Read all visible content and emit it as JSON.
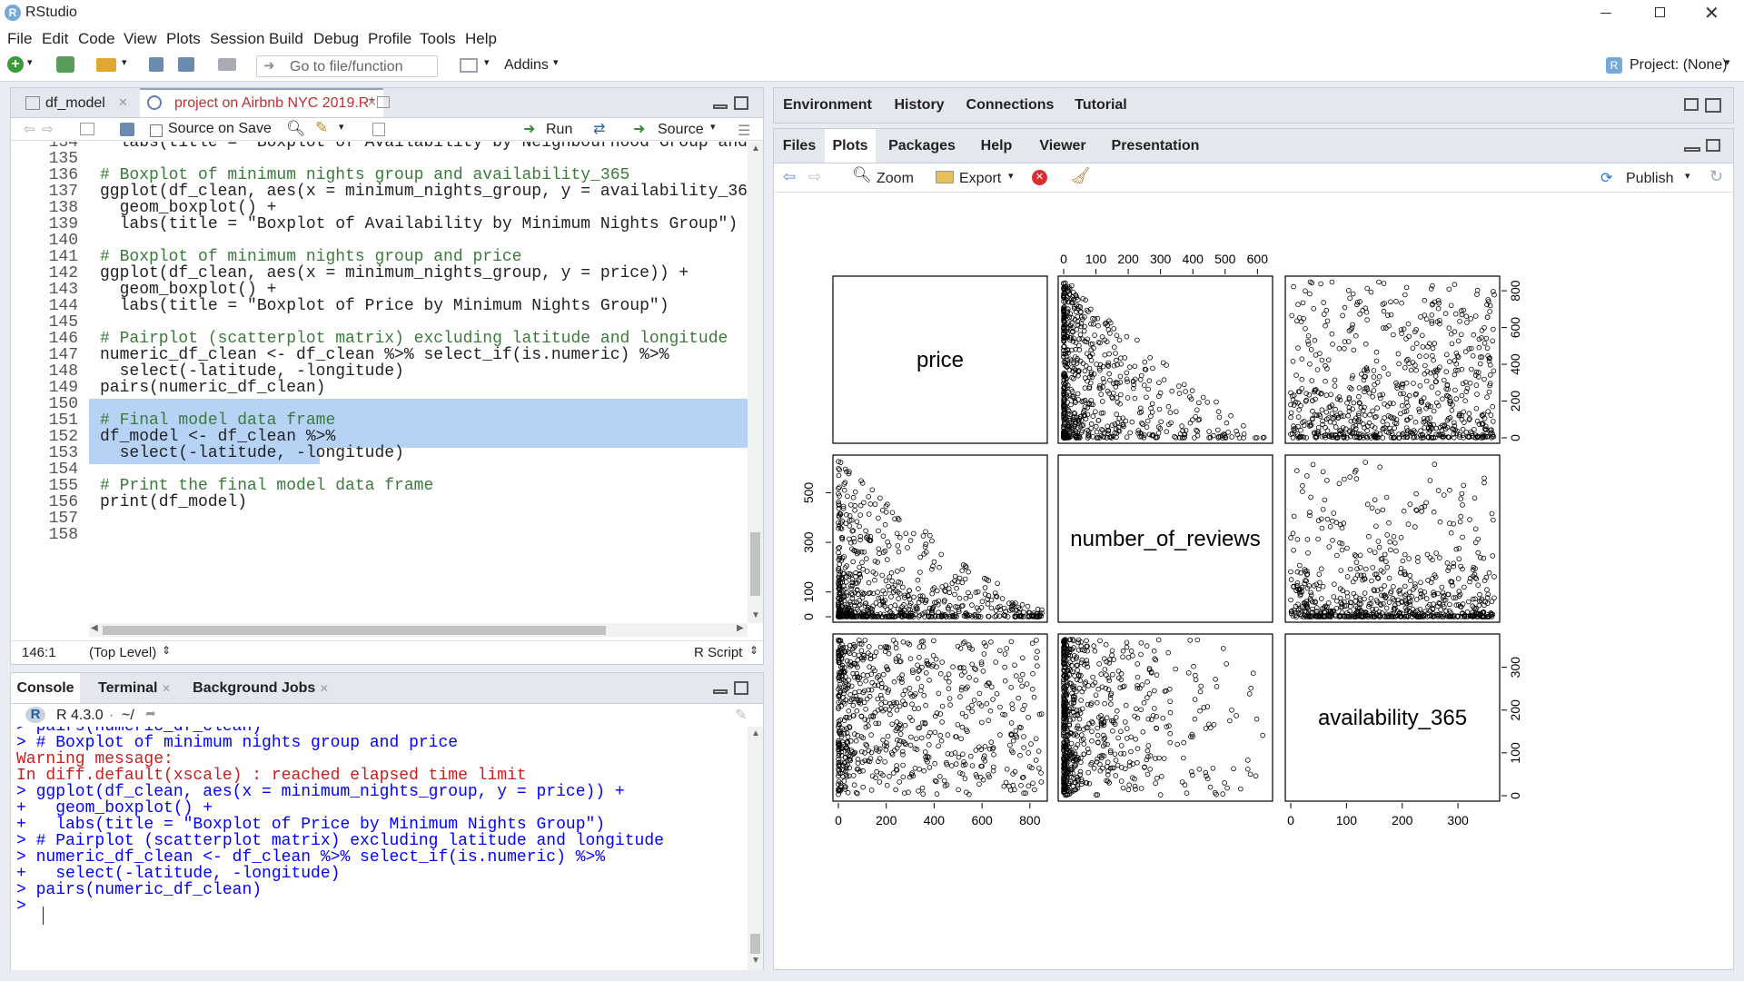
{
  "app": {
    "title": "RStudio"
  },
  "menu": [
    "File",
    "Edit",
    "Code",
    "View",
    "Plots",
    "Session",
    "Build",
    "Debug",
    "Profile",
    "Tools",
    "Help"
  ],
  "toolbar": {
    "goto_placeholder": "Go to file/function",
    "addins": "Addins",
    "project": "Project: (None)"
  },
  "editor": {
    "tabs": [
      {
        "label": "df_model"
      },
      {
        "label": "project on Airbnb NYC 2019.R*"
      }
    ],
    "toolbar": {
      "source_on_save": "Source on Save",
      "run": "Run",
      "source": "Source"
    },
    "lines": [
      {
        "n": "134",
        "t": "  labs(title = \"Boxplot of Availability by Neighbourhood Group and"
      },
      {
        "n": "135",
        "t": ""
      },
      {
        "n": "136",
        "t": "# Boxplot of minimum nights group and availability_365"
      },
      {
        "n": "137",
        "t": "ggplot(df_clean, aes(x = minimum_nights_group, y = availability_36"
      },
      {
        "n": "138",
        "t": "  geom_boxplot() +"
      },
      {
        "n": "139",
        "t": "  labs(title = \"Boxplot of Availability by Minimum Nights Group\")"
      },
      {
        "n": "140",
        "t": ""
      },
      {
        "n": "141",
        "t": "# Boxplot of minimum nights group and price"
      },
      {
        "n": "142",
        "t": "ggplot(df_clean, aes(x = minimum_nights_group, y = price)) +"
      },
      {
        "n": "143",
        "t": "  geom_boxplot() +"
      },
      {
        "n": "144",
        "t": "  labs(title = \"Boxplot of Price by Minimum Nights Group\")"
      },
      {
        "n": "145",
        "t": ""
      },
      {
        "n": "146",
        "t": "# Pairplot (scatterplot matrix) excluding latitude and longitude"
      },
      {
        "n": "147",
        "t": "numeric_df_clean <- df_clean %>% select_if(is.numeric) %>%"
      },
      {
        "n": "148",
        "t": "  select(-latitude, -longitude)"
      },
      {
        "n": "149",
        "t": "pairs(numeric_df_clean)"
      },
      {
        "n": "150",
        "t": ""
      },
      {
        "n": "151",
        "t": "# Final model data frame"
      },
      {
        "n": "152",
        "t": "df_model <- df_clean %>%"
      },
      {
        "n": "153",
        "t": "  select(-latitude, -longitude)"
      },
      {
        "n": "154",
        "t": ""
      },
      {
        "n": "155",
        "t": "# Print the final model data frame"
      },
      {
        "n": "156",
        "t": "print(df_model)"
      },
      {
        "n": "157",
        "t": ""
      },
      {
        "n": "158",
        "t": ""
      }
    ],
    "status": {
      "position": "146:1",
      "scope": "(Top Level)",
      "filetype": "R Script"
    }
  },
  "console": {
    "tabs": [
      {
        "label": "Console"
      },
      {
        "label": "Terminal"
      },
      {
        "label": "Background Jobs"
      }
    ],
    "r_version": "R 4.3.0",
    "path": "~/",
    "lines": [
      {
        "c": "blue",
        "t": "> pairs(numeric_df_clean)"
      },
      {
        "c": "blue",
        "t": "> # Boxplot of minimum nights group and price"
      },
      {
        "c": "red",
        "t": "Warning message:"
      },
      {
        "c": "red",
        "t": "In diff.default(xscale) : reached elapsed time limit"
      },
      {
        "c": "blue",
        "t": "> ggplot(df_clean, aes(x = minimum_nights_group, y = price)) +"
      },
      {
        "c": "blue",
        "t": "+   geom_boxplot() +"
      },
      {
        "c": "blue",
        "t": "+   labs(title = \"Boxplot of Price by Minimum Nights Group\")"
      },
      {
        "c": "blue",
        "t": "> # Pairplot (scatterplot matrix) excluding latitude and longitude"
      },
      {
        "c": "blue",
        "t": "> numeric_df_clean <- df_clean %>% select_if(is.numeric) %>%"
      },
      {
        "c": "blue",
        "t": "+   select(-latitude, -longitude)"
      },
      {
        "c": "blue",
        "t": "> pairs(numeric_df_clean)"
      },
      {
        "c": "blue",
        "t": ">"
      }
    ]
  },
  "env_pane": {
    "tabs": [
      {
        "label": "Environment"
      },
      {
        "label": "History"
      },
      {
        "label": "Connections"
      },
      {
        "label": "Tutorial"
      }
    ]
  },
  "files_pane": {
    "tabs": [
      {
        "label": "Files"
      },
      {
        "label": "Plots"
      },
      {
        "label": "Packages"
      },
      {
        "label": "Help"
      },
      {
        "label": "Viewer"
      },
      {
        "label": "Presentation"
      }
    ],
    "toolbar": {
      "zoom": "Zoom",
      "export": "Export",
      "publish": "Publish"
    }
  },
  "chart_data": {
    "type": "scatter",
    "variables": [
      "price",
      "number_of_reviews",
      "availability_365"
    ],
    "ticks": {
      "price": [
        "0",
        "200",
        "400",
        "600",
        "800"
      ],
      "number_of_reviews": [
        "0",
        "100",
        "200",
        "300",
        "400",
        "500",
        "600"
      ],
      "number_of_reviews_left": [
        "0",
        "100",
        "300",
        "500"
      ],
      "availability_365": [
        "0",
        "100",
        "200",
        "300"
      ]
    },
    "ranges": {
      "price": [
        0,
        850
      ],
      "number_of_reviews": [
        0,
        630
      ],
      "availability_365": [
        0,
        365
      ]
    }
  }
}
